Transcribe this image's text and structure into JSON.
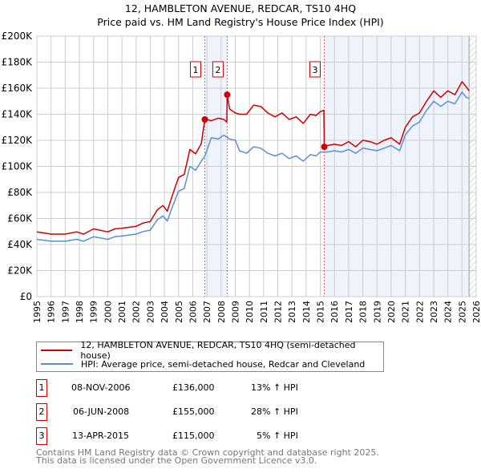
{
  "title": "12, HAMBLETON AVENUE, REDCAR, TS10 4HQ",
  "subtitle": "Price paid vs. HM Land Registry's House Price Index (HPI)",
  "chart_data": {
    "type": "line",
    "xlim": [
      1995,
      2026
    ],
    "ylim": [
      0,
      200000
    ],
    "x_ticks": [
      "1995",
      "1996",
      "1997",
      "1998",
      "1999",
      "2000",
      "2001",
      "2002",
      "2003",
      "2004",
      "2005",
      "2006",
      "2007",
      "2008",
      "2009",
      "2010",
      "2011",
      "2012",
      "2013",
      "2014",
      "2015",
      "2016",
      "2017",
      "2018",
      "2019",
      "2020",
      "2021",
      "2022",
      "2023",
      "2024",
      "2025",
      "2026"
    ],
    "y_ticks": [
      {
        "v": 0,
        "label": "£0"
      },
      {
        "v": 20000,
        "label": "£20K"
      },
      {
        "v": 40000,
        "label": "£40K"
      },
      {
        "v": 60000,
        "label": "£60K"
      },
      {
        "v": 80000,
        "label": "£80K"
      },
      {
        "v": 100000,
        "label": "£100K"
      },
      {
        "v": 120000,
        "label": "£120K"
      },
      {
        "v": 140000,
        "label": "£140K"
      },
      {
        "v": 160000,
        "label": "£160K"
      },
      {
        "v": 180000,
        "label": "£180K"
      },
      {
        "v": 200000,
        "label": "£200K"
      }
    ],
    "shaded_ranges": [
      [
        2006.85,
        2008.43
      ],
      [
        2015.28,
        2025.5
      ]
    ],
    "hatched_from": 2025.5,
    "series": [
      {
        "name": "12, HAMBLETON AVENUE, REDCAR, TS10 4HQ (semi-detached house)",
        "color": "#cc0000",
        "x": [
          1995,
          1996,
          1997,
          1997.8,
          1998.3,
          1999,
          2000,
          2000.5,
          2001,
          2002,
          2002.5,
          2003,
          2003.5,
          2003.9,
          2004.2,
          2004.6,
          2005,
          2005.4,
          2005.8,
          2006.2,
          2006.6,
          2006.85,
          2007,
          2007.3,
          2007.8,
          2008.2,
          2008.4,
          2008.43,
          2008.6,
          2009,
          2009.3,
          2009.8,
          2010.3,
          2010.8,
          2011.3,
          2011.8,
          2012.3,
          2012.8,
          2013.3,
          2013.8,
          2014.3,
          2014.7,
          2015,
          2015.25,
          2015.28,
          2015.5,
          2016,
          2016.5,
          2017,
          2017.5,
          2018,
          2018.5,
          2019,
          2019.5,
          2020,
          2020.6,
          2021,
          2021.5,
          2022,
          2022.5,
          2023,
          2023.5,
          2024,
          2024.5,
          2025,
          2025.3,
          2025.5
        ],
        "y": [
          49700,
          48000,
          48000,
          49700,
          48000,
          52000,
          49700,
          52000,
          52500,
          54000,
          56500,
          57600,
          66700,
          70000,
          65500,
          79000,
          91500,
          93800,
          113000,
          109600,
          117500,
          136000,
          136000,
          135000,
          137000,
          136000,
          134000,
          155000,
          144000,
          141000,
          140000,
          140000,
          147000,
          146000,
          141000,
          138000,
          141000,
          136000,
          138000,
          133000,
          140000,
          139000,
          142000,
          143000,
          115000,
          116000,
          117000,
          116000,
          119000,
          115000,
          120000,
          119000,
          117000,
          120000,
          122000,
          117000,
          130000,
          138000,
          141000,
          150000,
          158000,
          153000,
          158000,
          155000,
          165000,
          161000,
          158000
        ]
      },
      {
        "name": "HPI: Average price, semi-detached house, Redcar and Cleveland",
        "color": "#5b8fd4",
        "x": [
          1995,
          1996,
          1997,
          1997.8,
          1998.3,
          1999,
          2000,
          2000.5,
          2001,
          2002,
          2002.5,
          2003,
          2003.5,
          2003.9,
          2004.2,
          2004.6,
          2005,
          2005.4,
          2005.8,
          2006.2,
          2006.6,
          2006.85,
          2007,
          2007.3,
          2007.8,
          2008.2,
          2008.6,
          2009,
          2009.3,
          2009.8,
          2010.3,
          2010.8,
          2011.3,
          2011.8,
          2012.3,
          2012.8,
          2013.3,
          2013.8,
          2014.3,
          2014.7,
          2015,
          2015.5,
          2016,
          2016.5,
          2017,
          2017.5,
          2018,
          2018.5,
          2019,
          2019.5,
          2020,
          2020.6,
          2021,
          2021.5,
          2022,
          2022.5,
          2023,
          2023.5,
          2024,
          2024.5,
          2025,
          2025.3,
          2025.5
        ],
        "y": [
          44000,
          42500,
          42500,
          44000,
          42500,
          46000,
          44000,
          46000,
          46500,
          48000,
          50000,
          51000,
          59000,
          62000,
          58000,
          70000,
          81000,
          83000,
          100000,
          97000,
          104000,
          108000,
          112000,
          122000,
          121000,
          124000,
          121000,
          120000,
          112000,
          110000,
          115000,
          114000,
          110000,
          108000,
          110000,
          106000,
          108000,
          104000,
          109000,
          108000,
          111000,
          111000,
          112000,
          111000,
          113000,
          110000,
          114000,
          113000,
          112000,
          114000,
          116000,
          112000,
          124000,
          131000,
          134000,
          143000,
          150000,
          146000,
          150000,
          148000,
          157000,
          153000,
          152000
        ]
      }
    ],
    "sales": [
      {
        "num": "1",
        "x": 2006.85,
        "y": 136000
      },
      {
        "num": "2",
        "x": 2008.43,
        "y": 155000
      },
      {
        "num": "3",
        "x": 2015.28,
        "y": 115000
      }
    ]
  },
  "legend": {
    "property": "12, HAMBLETON AVENUE, REDCAR, TS10 4HQ (semi-detached house)",
    "hpi": "HPI: Average price, semi-detached house, Redcar and Cleveland"
  },
  "transactions": [
    {
      "num": "1",
      "date": "08-NOV-2006",
      "price": "£136,000",
      "hpi": "13% ↑ HPI"
    },
    {
      "num": "2",
      "date": "06-JUN-2008",
      "price": "£155,000",
      "hpi": "28% ↑ HPI"
    },
    {
      "num": "3",
      "date": "13-APR-2015",
      "price": "£115,000",
      "hpi": "5% ↑ HPI"
    }
  ],
  "footer": {
    "line1": "Contains HM Land Registry data © Crown copyright and database right 2025.",
    "line2": "This data is licensed under the Open Government Licence v3.0."
  }
}
